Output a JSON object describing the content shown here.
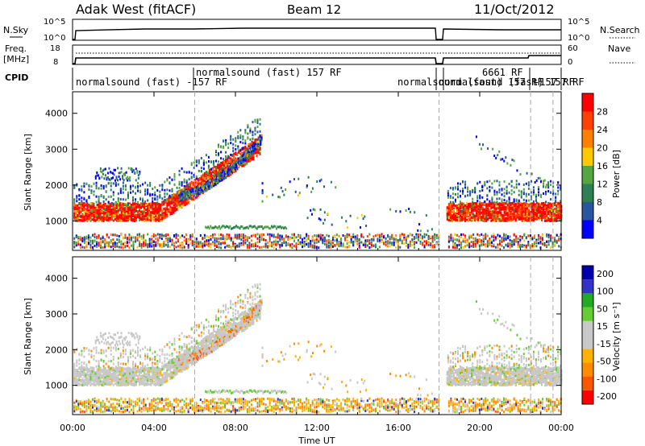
{
  "header": {
    "title": "Adak West (fitACF)",
    "beam": "Beam 12",
    "date": "11/Oct/2012"
  },
  "top_panels": {
    "nsky_label": "N.Sky",
    "nsearch_label": "N.Search",
    "left_ticks_top": [
      "10^5",
      "10^0"
    ],
    "right_ticks_top": [
      "10^5",
      "10^0"
    ],
    "freq_label": "Freq.",
    "freq_unit": "[MHz]",
    "freq_ticks": [
      "18",
      "8"
    ],
    "nave_label": "Nave",
    "nave_ticks": [
      "60",
      "0"
    ],
    "cpid_label": "CPID",
    "cpid_names": [
      "normalsound (fast) -157 RF",
      "normalsound (fast) 157 RF",
      "normalsound (fast) 157 RF",
      "normalsound (fast) 157 RF",
      "6661 RF",
      "-157 RF"
    ]
  },
  "colors": {
    "power_scale": [
      "#0000ff",
      "#2a55a0",
      "#2f7f55",
      "#55a640",
      "#ffc800",
      "#ff8000",
      "#ff4000",
      "#ff0000"
    ],
    "velocity_scale": [
      "#ff0000",
      "#ff5500",
      "#ff8c00",
      "#ffb300",
      "#c8c8c8",
      "#c8c8c8",
      "#66cc33",
      "#22aa22",
      "#3333cc",
      "#0000aa"
    ],
    "grid_dash": "#aaaaaa"
  },
  "chart_data": [
    {
      "type": "heatmap",
      "name": "power",
      "ylabel": "Slant Range [km]",
      "yticks": [
        1000,
        2000,
        3000,
        4000
      ],
      "ylim": [
        180,
        4600
      ],
      "colorbar_label": "Power [dB]",
      "colorbar_ticks": [
        4,
        8,
        12,
        16,
        20,
        24,
        28
      ],
      "colorbar_range": [
        0,
        32
      ]
    },
    {
      "type": "heatmap",
      "name": "velocity",
      "ylabel": "Slant Range [km]",
      "yticks": [
        1000,
        2000,
        3000,
        4000
      ],
      "ylim": [
        180,
        4600
      ],
      "colorbar_label": "Velocity [m s⁻¹]",
      "colorbar_ticks": [
        -200,
        -100,
        -50,
        -15,
        15,
        50,
        100,
        200
      ]
    }
  ],
  "x_axis": {
    "label": "Time UT",
    "ticks": [
      "00:00",
      "04:00",
      "08:00",
      "12:00",
      "16:00",
      "20:00",
      "00:00"
    ],
    "hours": [
      0,
      4,
      8,
      12,
      16,
      20,
      24
    ],
    "dashed_lines_hours": [
      6,
      18,
      22.5,
      23.6
    ]
  }
}
